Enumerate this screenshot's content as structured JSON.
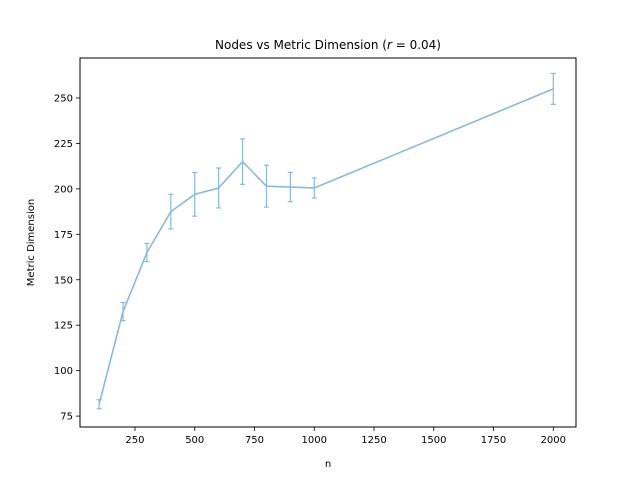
{
  "chart_data": {
    "type": "line",
    "title": "Nodes vs Metric Dimension (r = 0.04)",
    "title_parts": {
      "prefix": "Nodes vs Metric Dimension (",
      "var": "r",
      "suffix": " = 0.04)"
    },
    "xlabel": "n",
    "ylabel": "Metric Dimension",
    "xlim": [
      20,
      2095
    ],
    "ylim": [
      69,
      272
    ],
    "xticks": [
      250,
      500,
      750,
      1000,
      1250,
      1500,
      1750,
      2000
    ],
    "yticks": [
      75,
      100,
      125,
      150,
      175,
      200,
      225,
      250
    ],
    "grid": false,
    "color": "#8ab9da",
    "series": [
      {
        "x": [
          100,
          200,
          300,
          400,
          500,
          600,
          700,
          800,
          900,
          1000,
          2000
        ],
        "y": [
          81.5,
          132.5,
          165,
          187.5,
          197,
          200.5,
          215,
          201.5,
          201,
          200.5,
          255
        ],
        "yerr": [
          2.5,
          5,
          5,
          9.5,
          12,
          11,
          12.5,
          11.5,
          8,
          5.5,
          8.5
        ]
      }
    ]
  }
}
